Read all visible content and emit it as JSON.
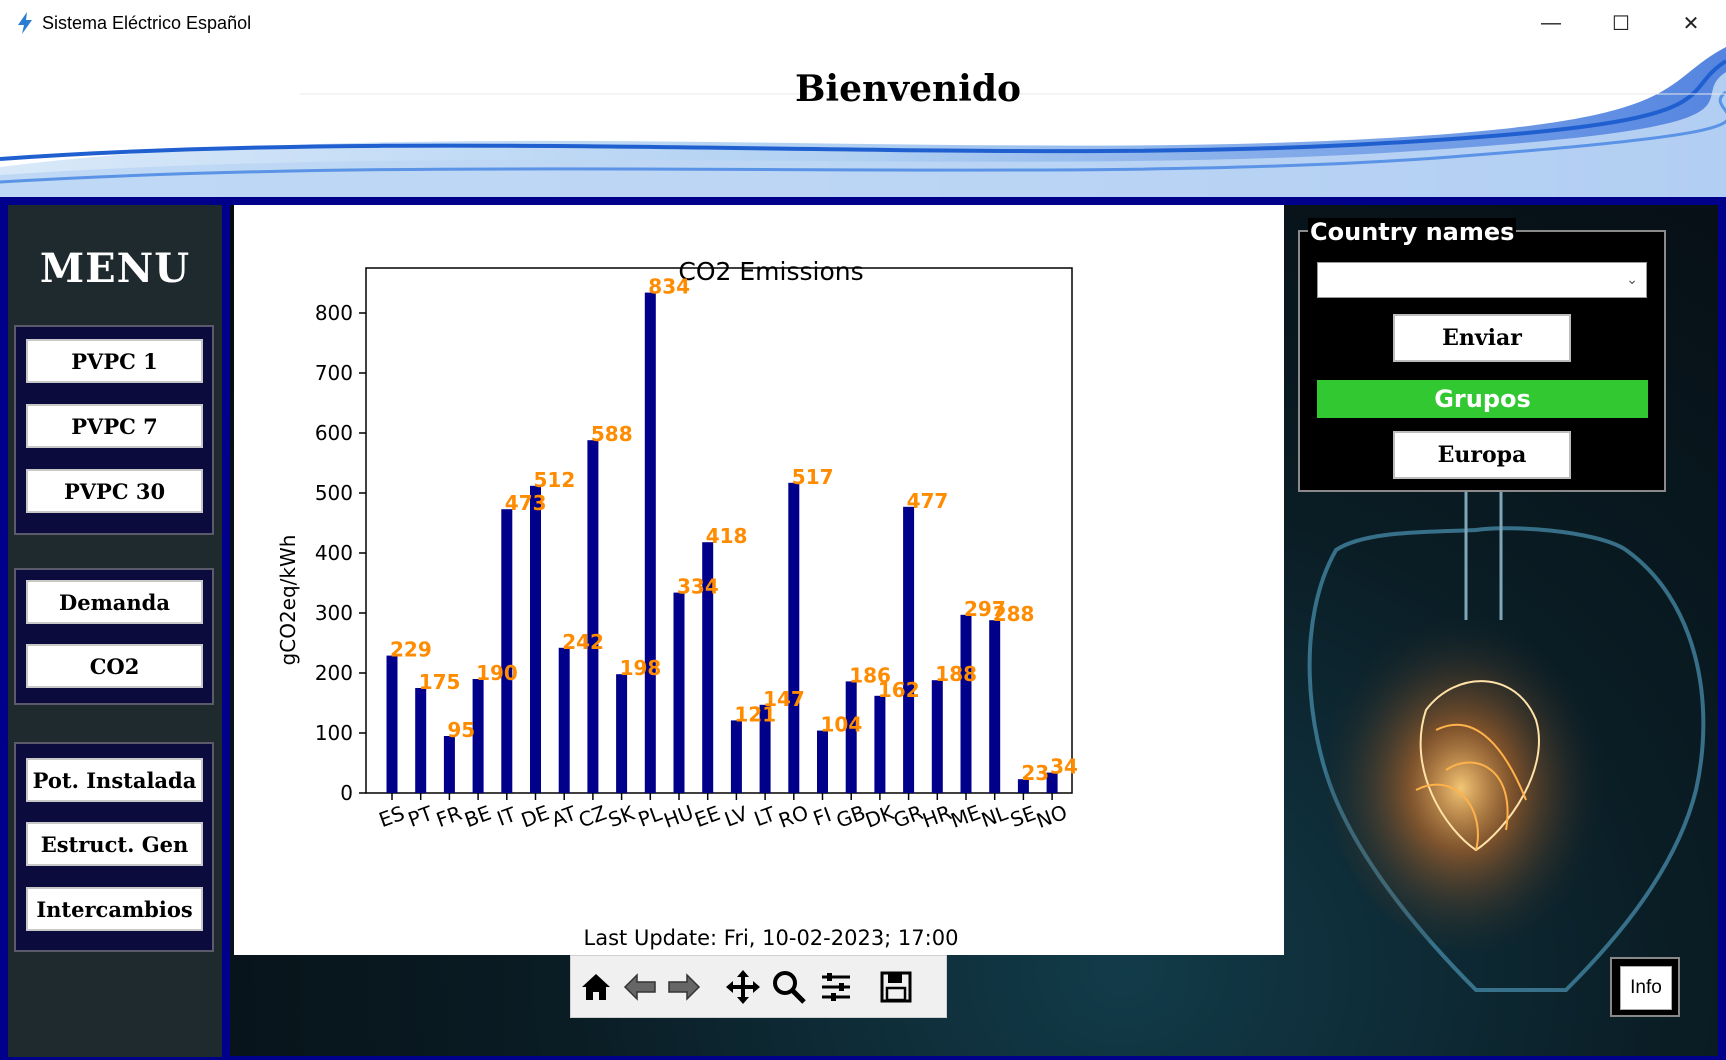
{
  "window": {
    "title": "Sistema Eléctrico Español",
    "minimize_glyph": "—",
    "maximize_glyph": "☐",
    "close_glyph": "✕"
  },
  "header": {
    "title": "Bienvenido"
  },
  "sidebar": {
    "title": "MENU",
    "groups": [
      {
        "items": [
          "PVPC 1",
          "PVPC 7",
          "PVPC 30"
        ]
      },
      {
        "items": [
          "Demanda",
          "CO2"
        ]
      },
      {
        "items": [
          "Pot. Instalada",
          "Estruct. Gen",
          "Intercambios"
        ]
      }
    ]
  },
  "chart_data": {
    "type": "bar",
    "title": "CO2 Emissions",
    "ylabel": "gCO2eq/kWh",
    "xlabel": "",
    "categories": [
      "ES",
      "PT",
      "FR",
      "BE",
      "IT",
      "DE",
      "AT",
      "CZ",
      "SK",
      "PL",
      "HU",
      "EE",
      "LV",
      "LT",
      "RO",
      "FI",
      "GB",
      "DK",
      "GR",
      "HR",
      "ME",
      "NL",
      "SE",
      "NO"
    ],
    "values": [
      229,
      175,
      95,
      190,
      473,
      512,
      242,
      588,
      198,
      834,
      334,
      418,
      121,
      147,
      517,
      104,
      186,
      162,
      477,
      188,
      297,
      288,
      23,
      34
    ],
    "yticks": [
      0,
      100,
      200,
      300,
      400,
      500,
      600,
      700,
      800
    ],
    "ylim": [
      0,
      875
    ],
    "bar_color": "#00008b",
    "label_color": "#ff8c00",
    "grid": false,
    "footer": "Last Update: Fri, 10-02-2023; 17:00"
  },
  "right_panel": {
    "title": "Country names",
    "select_value": "",
    "buttons": {
      "enviar": "Enviar",
      "grupos": "Grupos",
      "europa": "Europa"
    },
    "grupos_color": "#32c832"
  },
  "info_label": "Info"
}
